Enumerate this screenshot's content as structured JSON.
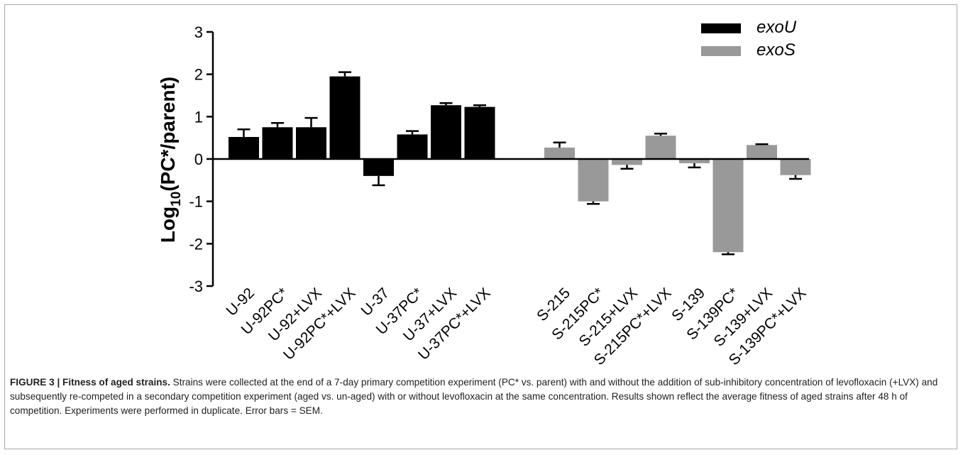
{
  "chart_data": {
    "type": "bar",
    "ylabel_main": "Log",
    "ylabel_sub": "10",
    "ylabel_rest": "(PC*/parent)",
    "ylim": [
      -3,
      3
    ],
    "yticks": [
      "3",
      "2",
      "1",
      "0",
      "-1",
      "-2",
      "-3"
    ],
    "grid": false,
    "legend_position": "top-right",
    "series": [
      {
        "name": "exoU",
        "color": "#000000"
      },
      {
        "name": "exoS",
        "color": "#999999"
      }
    ],
    "bars": [
      {
        "label": "U-92",
        "value": 0.52,
        "error": 0.18,
        "series": 0
      },
      {
        "label": "U-92PC*",
        "value": 0.75,
        "error": 0.1,
        "series": 0
      },
      {
        "label": "U-92+LVX",
        "value": 0.75,
        "error": 0.22,
        "series": 0
      },
      {
        "label": "U-92PC*+LVX",
        "value": 1.95,
        "error": 0.1,
        "series": 0
      },
      {
        "label": "U-37",
        "value": -0.4,
        "error": 0.22,
        "series": 0
      },
      {
        "label": "U-37PC*",
        "value": 0.58,
        "error": 0.08,
        "series": 0
      },
      {
        "label": "U-37+LVX",
        "value": 1.27,
        "error": 0.05,
        "series": 0
      },
      {
        "label": "U-37PC*+LVX",
        "value": 1.23,
        "error": 0.04,
        "series": 0
      },
      {
        "label": "S-215",
        "value": 0.27,
        "error": 0.12,
        "series": 1
      },
      {
        "label": "S-215PC*",
        "value": -1.0,
        "error": 0.06,
        "series": 1
      },
      {
        "label": "S-215+LVX",
        "value": -0.14,
        "error": 0.09,
        "series": 1
      },
      {
        "label": "S-215PC*+LVX",
        "value": 0.55,
        "error": 0.05,
        "series": 1
      },
      {
        "label": "S-139",
        "value": -0.1,
        "error": 0.1,
        "series": 1
      },
      {
        "label": "S-139PC*",
        "value": -2.2,
        "error": 0.05,
        "series": 1
      },
      {
        "label": "S-139+LVX",
        "value": 0.33,
        "error": 0.02,
        "series": 1
      },
      {
        "label": "S-139PC*+LVX",
        "value": -0.38,
        "error": 0.09,
        "series": 1
      }
    ]
  },
  "caption": {
    "label": "FIGURE 3 | Fitness of aged strains.",
    "text": " Strains were collected at the end of a 7-day primary competition experiment (PC* vs. parent) with and without the addition of sub-inhibitory concentration of levofloxacin (+LVX) and subsequently re-competed in a secondary competition experiment (aged vs. un-aged) with or without levofloxacin at the same concentration. Results shown reflect the average fitness of aged strains after 48 h of competition. Experiments were performed in duplicate. Error bars = SEM."
  }
}
